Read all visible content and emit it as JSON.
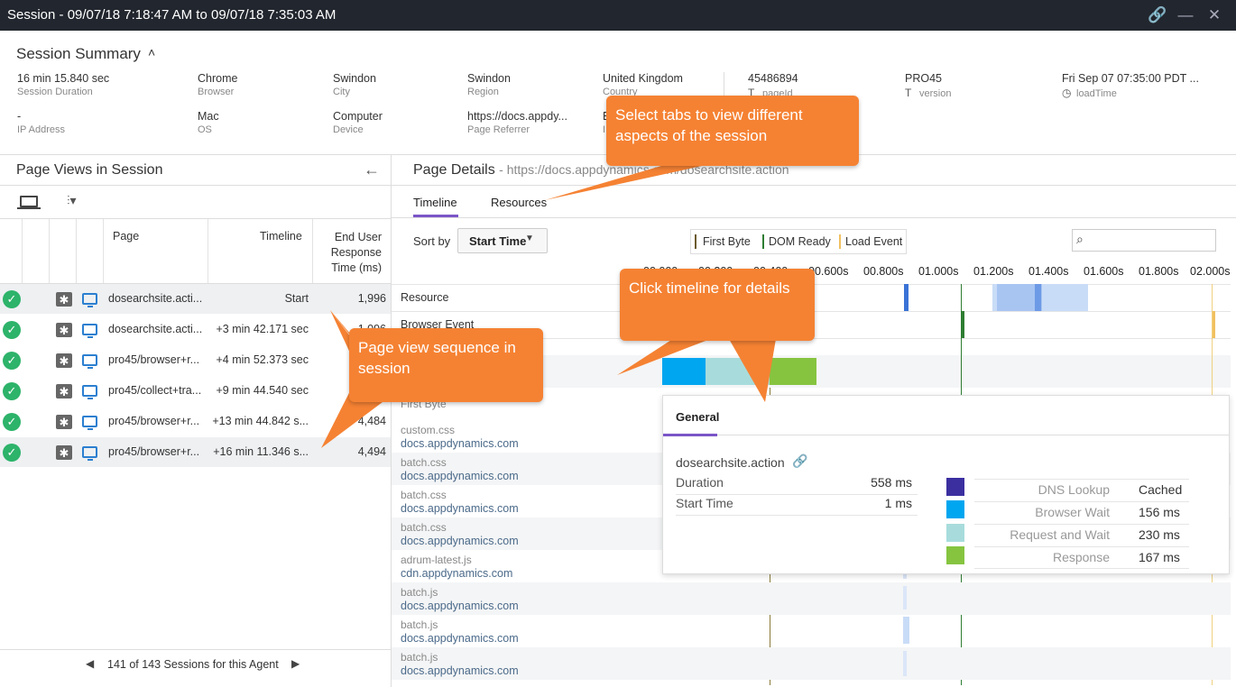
{
  "window": {
    "title": "Session - 09/07/18 7:18:47 AM to 09/07/18 7:35:03 AM"
  },
  "summary": {
    "title": "Session Summary",
    "fields": [
      {
        "value": "16 min 15.840 sec",
        "label": "Session Duration"
      },
      {
        "value": "Chrome",
        "label": "Browser"
      },
      {
        "value": "Swindon",
        "label": "City"
      },
      {
        "value": "Swindon",
        "label": "Region"
      },
      {
        "value": "United Kingdom",
        "label": "Country"
      },
      {
        "value": "45486894",
        "label": "pageId"
      },
      {
        "value": "PRO45",
        "label": "version"
      },
      {
        "value": "Fri Sep 07 07:35:00 PDT ...",
        "label": "loadTime"
      },
      {
        "value": "-",
        "label": "IP Address"
      },
      {
        "value": "Mac",
        "label": "OS"
      },
      {
        "value": "Computer",
        "label": "Device"
      },
      {
        "value": "https://docs.appdy...",
        "label": "Page Referrer"
      },
      {
        "value": "E",
        "label": "I"
      }
    ]
  },
  "page_views": {
    "title": "Page Views in Session",
    "headers": {
      "page": "Page",
      "timeline": "Timeline",
      "response": "End User Response Time (ms)"
    },
    "rows": [
      {
        "page": "dosearchsite.acti...",
        "timeline": "Start",
        "response": "1,996"
      },
      {
        "page": "dosearchsite.acti...",
        "timeline": "+3 min 42.171 sec",
        "response": "1,096"
      },
      {
        "page": "pro45/browser+r...",
        "timeline": "+4 min 52.373 sec",
        "response": ""
      },
      {
        "page": "pro45/collect+tra...",
        "timeline": "+9 min 44.540 sec",
        "response": ""
      },
      {
        "page": "pro45/browser+r...",
        "timeline": "+13 min 44.842 s...",
        "response": "4,484"
      },
      {
        "page": "pro45/browser+r...",
        "timeline": "+16 min 11.346 s...",
        "response": "4,494"
      }
    ],
    "pager": "141 of 143 Sessions for this Agent"
  },
  "details": {
    "title": "Page Details",
    "url": "- https://docs.appdynamics.com/dosearchsite.action",
    "tabs": [
      "Timeline",
      "Resources"
    ],
    "sort_label": "Sort by",
    "sort_value": "Start Time",
    "legend": [
      "First Byte",
      "DOM Ready",
      "Load Event"
    ],
    "axis": [
      "00.000s",
      "00.200s",
      "00.400s",
      "00.600s",
      "00.800s",
      "01.000s",
      "01.200s",
      "01.400s",
      "01.600s",
      "01.800s",
      "02.000s"
    ],
    "rows_top": [
      "Resource",
      "Browser Event"
    ],
    "first_byte_label": "First Byte",
    "resources": [
      {
        "name": "custom.css",
        "host": "docs.appdynamics.com"
      },
      {
        "name": "batch.css",
        "host": "docs.appdynamics.com"
      },
      {
        "name": "batch.css",
        "host": "docs.appdynamics.com"
      },
      {
        "name": "batch.css",
        "host": "docs.appdynamics.com"
      },
      {
        "name": "adrum-latest.js",
        "host": "cdn.appdynamics.com"
      },
      {
        "name": "batch.js",
        "host": "docs.appdynamics.com"
      },
      {
        "name": "batch.js",
        "host": "docs.appdynamics.com"
      },
      {
        "name": "batch.js",
        "host": "docs.appdynamics.com"
      }
    ]
  },
  "popup": {
    "tab": "General",
    "name": "dosearchsite.action",
    "duration_label": "Duration",
    "duration_value": "558 ms",
    "start_label": "Start Time",
    "start_value": "1 ms",
    "breakdown": [
      {
        "label": "DNS Lookup",
        "value": "Cached",
        "color": "#3b2fa0"
      },
      {
        "label": "Browser Wait",
        "value": "156 ms",
        "color": "#00a6f0"
      },
      {
        "label": "Request and Wait",
        "value": "230 ms",
        "color": "#a8dcdc"
      },
      {
        "label": "Response",
        "value": "167 ms",
        "color": "#86c440"
      }
    ]
  },
  "callouts": {
    "tabs": "Select tabs to view different aspects of the session",
    "timeline": "Click timeline for details",
    "sequence": "Page view sequence in session"
  }
}
